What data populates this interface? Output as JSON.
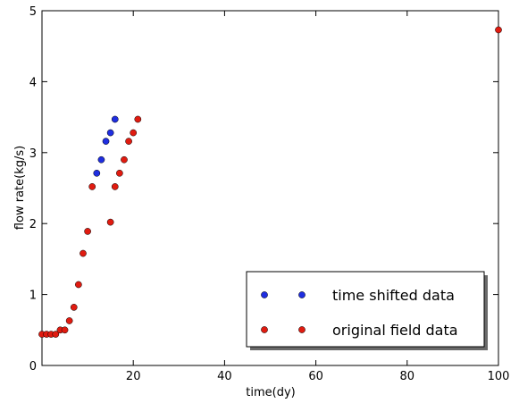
{
  "chart_data": {
    "type": "scatter",
    "title": "",
    "xlabel": "time(dy)",
    "ylabel": "flow rate(kg/s)",
    "xlim": [
      0,
      100
    ],
    "ylim": [
      0,
      5
    ],
    "xticks": [
      {
        "value": 20,
        "label": "20"
      },
      {
        "value": 40,
        "label": "40"
      },
      {
        "value": 60,
        "label": "60"
      },
      {
        "value": 80,
        "label": "80"
      },
      {
        "value": 100,
        "label": "100"
      }
    ],
    "yticks": [
      {
        "value": 0,
        "label": "0"
      },
      {
        "value": 1,
        "label": "1"
      },
      {
        "value": 2,
        "label": "2"
      },
      {
        "value": 3,
        "label": "3"
      },
      {
        "value": 4,
        "label": "4"
      },
      {
        "value": 5,
        "label": "5"
      }
    ],
    "grid": false,
    "legend_position": "lower-right",
    "series": [
      {
        "name": "time shifted data",
        "color": "#1f2ee0",
        "x": [
          12,
          13,
          14,
          15,
          16
        ],
        "y": [
          2.71,
          2.9,
          3.16,
          3.28,
          3.47
        ]
      },
      {
        "name": "original field data",
        "color": "#e01b10",
        "x": [
          0,
          1,
          2,
          3,
          4,
          5,
          6,
          7,
          8,
          9,
          10,
          11,
          15,
          16,
          17,
          18,
          19,
          20,
          21,
          100
        ],
        "y": [
          0.44,
          0.44,
          0.44,
          0.44,
          0.5,
          0.5,
          0.63,
          0.82,
          1.14,
          1.58,
          1.89,
          2.52,
          2.02,
          2.52,
          2.71,
          2.9,
          3.16,
          3.28,
          3.47,
          4.73
        ]
      }
    ]
  }
}
